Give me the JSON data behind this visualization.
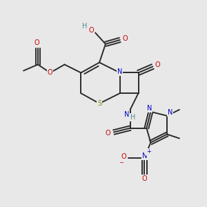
{
  "bg_color": "#e8e8e8",
  "bond_color": "#2a2a2a",
  "bond_width": 1.4,
  "atom_colors": {
    "O": "#cc0000",
    "N": "#0000cc",
    "S": "#888800",
    "C": "#2a2a2a",
    "H": "#4a8888"
  },
  "font_size": 7.0,
  "figsize": [
    3.0,
    3.0
  ],
  "dpi": 100
}
